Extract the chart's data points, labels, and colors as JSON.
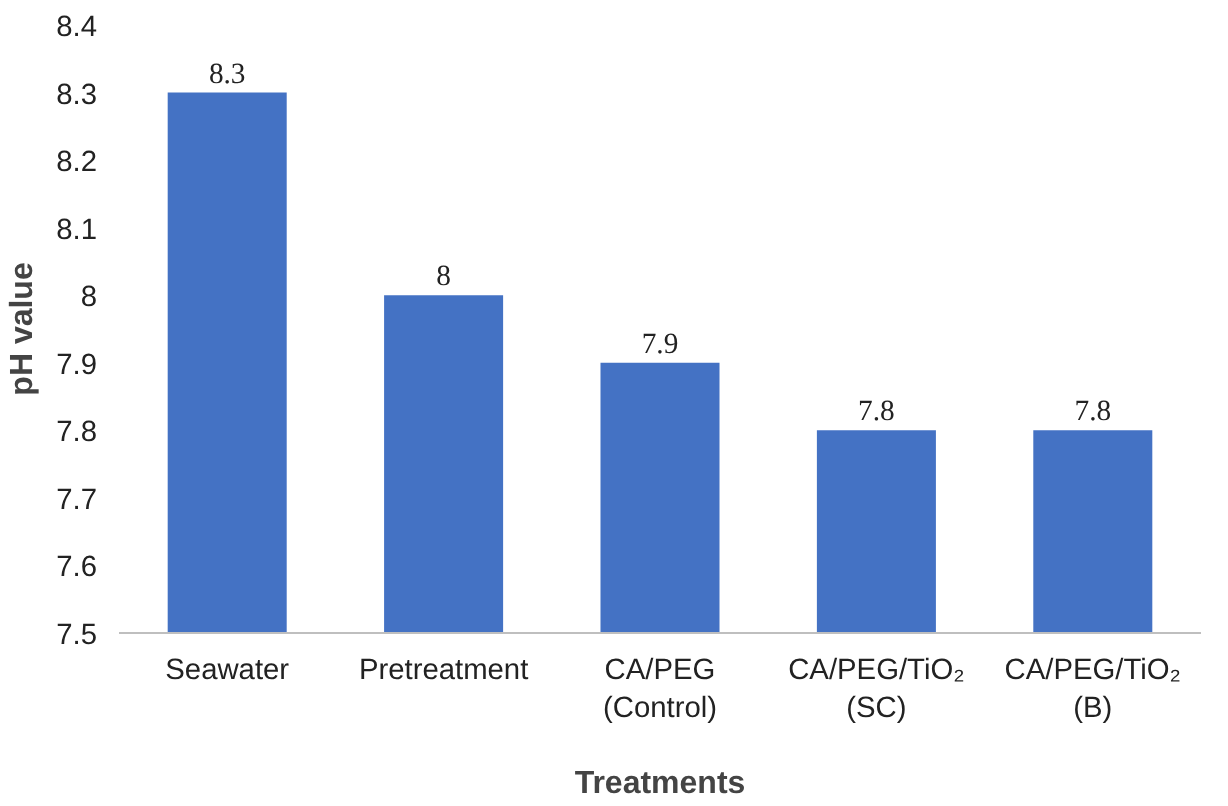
{
  "chart_data": {
    "type": "bar",
    "xlabel": "Treatments",
    "ylabel": "pH value",
    "categories": [
      "Seawater",
      "Pretreatment",
      "CA/PEG\n(Control)",
      "CA/PEG/TiO₂\n(SC)",
      "CA/PEG/TiO₂\n(B)"
    ],
    "values": [
      8.3,
      8,
      7.9,
      7.8,
      7.8
    ],
    "color": "#4472c4",
    "ylim": [
      7.5,
      8.4
    ],
    "yticks": [
      7.5,
      7.6,
      7.7,
      7.8,
      7.9,
      8,
      8.1,
      8.2,
      8.3,
      8.4
    ],
    "grid": false,
    "data_labels": true
  }
}
